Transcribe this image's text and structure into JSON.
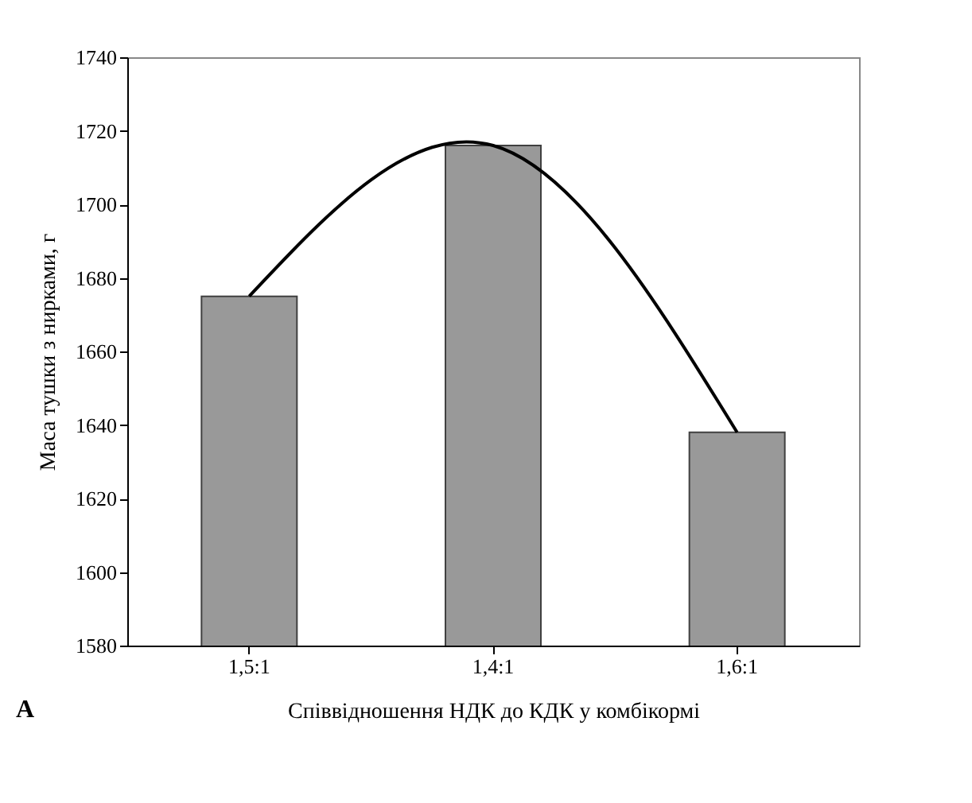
{
  "chart_data": {
    "type": "bar",
    "xlabel": "Співвідношення НДК до КДК у  комбікормі",
    "ylabel": "Маса тушки з нирками, г",
    "categories": [
      "1,5:1",
      "1,4:1",
      "1,6:1"
    ],
    "series": [
      {
        "color": "#999999",
        "values": [
          1675,
          1716,
          1638
        ]
      },
      {
        "type": "line",
        "color": "#000000",
        "values": [
          1675,
          1716,
          1638
        ]
      }
    ],
    "ylim": [
      1580,
      1740
    ],
    "yticks": [
      1580,
      1600,
      1620,
      1640,
      1660,
      1680,
      1700,
      1720,
      1740
    ],
    "grid": false,
    "marker": "none",
    "line_style": "solid",
    "annotations": [
      "A"
    ]
  }
}
